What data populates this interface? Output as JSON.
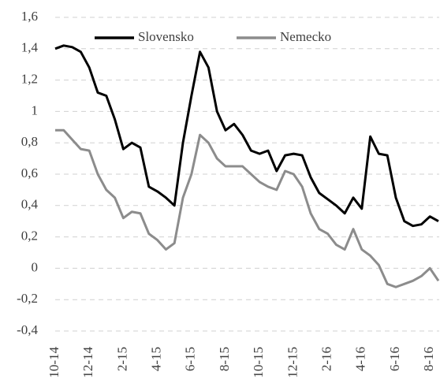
{
  "chart_data": {
    "type": "line",
    "categories": [
      "10-14",
      null,
      null,
      null,
      "12-14",
      null,
      null,
      null,
      "2-15",
      null,
      null,
      null,
      "4-15",
      null,
      null,
      null,
      "6-15",
      null,
      null,
      null,
      "8-15",
      null,
      null,
      null,
      "10-15",
      null,
      null,
      null,
      "12-15",
      null,
      null,
      null,
      "2-16",
      null,
      null,
      null,
      "4-16",
      null,
      null,
      null,
      "6-16",
      null,
      null,
      null,
      "8-16",
      null
    ],
    "series": [
      {
        "name": "Slovensko",
        "color": "#000000",
        "values": [
          1.4,
          1.42,
          1.41,
          1.38,
          1.28,
          1.12,
          1.1,
          0.95,
          0.76,
          0.8,
          0.77,
          0.52,
          0.49,
          0.45,
          0.4,
          0.8,
          1.1,
          1.38,
          1.28,
          1.0,
          0.88,
          0.92,
          0.85,
          0.75,
          0.73,
          0.75,
          0.62,
          0.72,
          0.73,
          0.72,
          0.58,
          0.48,
          0.44,
          0.4,
          0.35,
          0.45,
          0.38,
          0.84,
          0.73,
          0.72,
          0.45,
          0.3,
          0.27,
          0.28,
          0.33,
          0.3
        ]
      },
      {
        "name": "Nemecko",
        "color": "#8c8c8c",
        "values": [
          0.88,
          0.88,
          0.82,
          0.76,
          0.75,
          0.6,
          0.5,
          0.45,
          0.32,
          0.36,
          0.35,
          0.22,
          0.18,
          0.12,
          0.16,
          0.45,
          0.6,
          0.85,
          0.8,
          0.7,
          0.65,
          0.65,
          0.65,
          0.6,
          0.55,
          0.52,
          0.5,
          0.62,
          0.6,
          0.52,
          0.35,
          0.25,
          0.22,
          0.15,
          0.12,
          0.25,
          0.12,
          0.08,
          0.02,
          -0.1,
          -0.12,
          -0.1,
          -0.08,
          -0.05,
          0.0,
          -0.08
        ]
      }
    ],
    "ylim": [
      -0.4,
      1.6
    ],
    "yticks": [
      {
        "value": -0.4,
        "label": "-0,4"
      },
      {
        "value": -0.2,
        "label": "-0,2"
      },
      0,
      {
        "value": 0.2,
        "label": "0,2"
      },
      {
        "value": 0.4,
        "label": "0,4"
      },
      {
        "value": 0.6,
        "label": "0,6"
      },
      {
        "value": 0.8,
        "label": "0,8"
      },
      1,
      {
        "value": 1.2,
        "label": "1,2"
      },
      {
        "value": 1.4,
        "label": "1,4"
      },
      {
        "value": 1.6,
        "label": "1,6"
      }
    ],
    "grid": true,
    "legend": "top"
  }
}
